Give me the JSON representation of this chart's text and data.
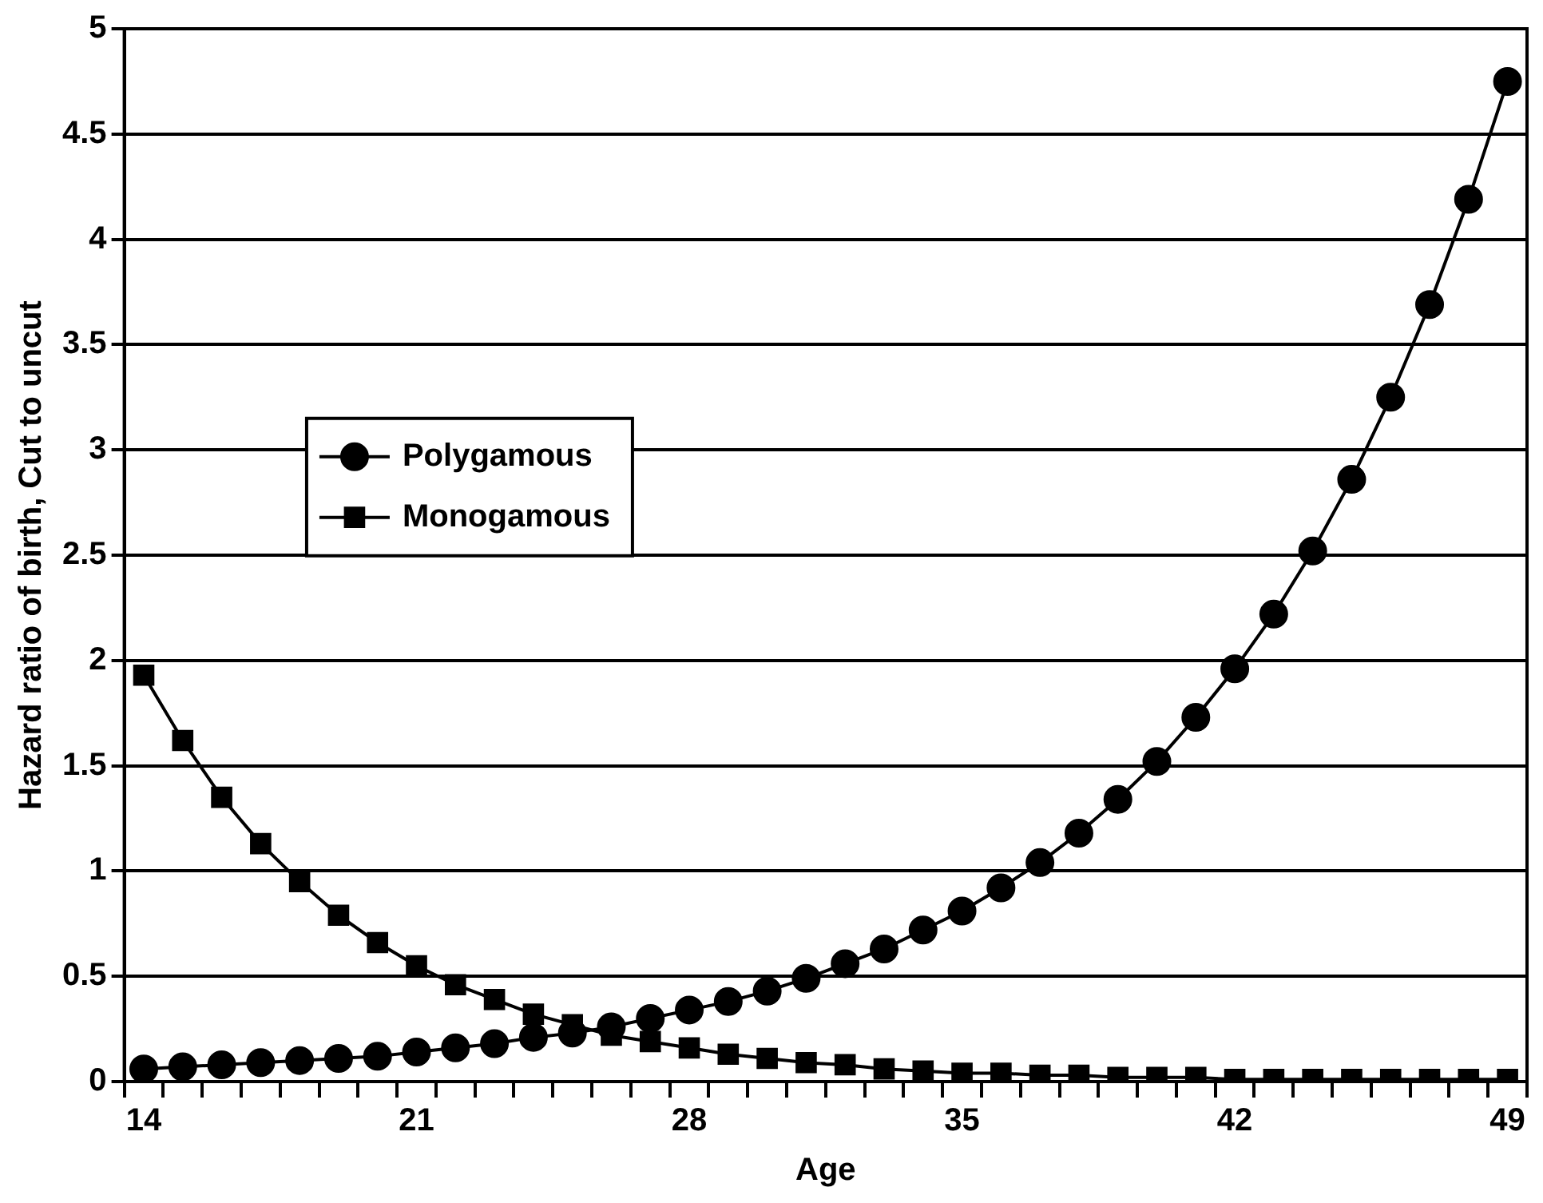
{
  "chart_data": {
    "type": "line",
    "xlabel": "Age",
    "ylabel": "Hazard ratio of birth, Cut to uncut",
    "categories": [
      "14",
      null,
      null,
      null,
      null,
      null,
      null,
      "21",
      null,
      null,
      null,
      null,
      null,
      null,
      "28",
      null,
      null,
      null,
      null,
      null,
      null,
      "35",
      null,
      null,
      null,
      null,
      null,
      null,
      "42",
      null,
      null,
      null,
      null,
      null,
      null,
      "49"
    ],
    "series": [
      {
        "name": "Polygamous",
        "color": "#000000",
        "marker": "circle",
        "values": [
          0.06,
          0.07,
          0.08,
          0.09,
          0.1,
          0.11,
          0.12,
          0.14,
          0.16,
          0.18,
          0.21,
          0.23,
          0.26,
          0.3,
          0.34,
          0.38,
          0.43,
          0.49,
          0.56,
          0.63,
          0.72,
          0.81,
          0.92,
          1.04,
          1.18,
          1.34,
          1.52,
          1.73,
          1.96,
          2.22,
          2.52,
          2.86,
          3.25,
          3.69,
          4.19,
          4.75
        ]
      },
      {
        "name": "Monogamous",
        "color": "#000000",
        "marker": "square",
        "values": [
          1.93,
          1.62,
          1.35,
          1.13,
          0.95,
          0.79,
          0.66,
          0.55,
          0.46,
          0.39,
          0.32,
          0.27,
          0.22,
          0.19,
          0.16,
          0.13,
          0.11,
          0.09,
          0.08,
          0.06,
          0.05,
          0.04,
          0.04,
          0.03,
          0.03,
          0.02,
          0.02,
          0.02,
          0.01,
          0.01,
          0.01,
          0.01,
          0.01,
          0.01,
          0.01,
          0.01
        ]
      }
    ],
    "ylim": [
      0,
      5
    ],
    "yticks": [
      0,
      0.5,
      1,
      1.5,
      2,
      2.5,
      3,
      3.5,
      4,
      4.5,
      5
    ],
    "grid": "y",
    "legend": "left",
    "line_style": "solid"
  }
}
